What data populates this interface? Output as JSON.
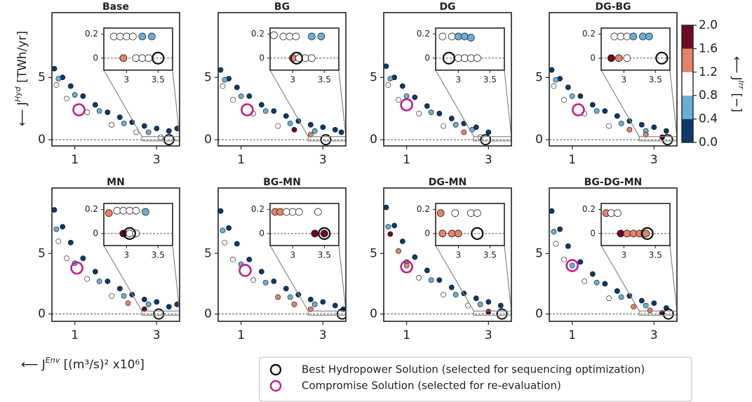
{
  "figure": {
    "ylabel": {
      "prefix": "⟵ J",
      "sup": "Hyd",
      "suffix": " [TWh/yr]"
    },
    "xlabel": {
      "prefix": "⟵ J",
      "sup": "Env",
      "suffix": " [(m³/s)² x10⁶]"
    },
    "zero_line": true,
    "colorbar": {
      "lim": [
        0,
        2
      ],
      "ticks": [
        {
          "value": 0,
          "label": "0.0"
        },
        0.4,
        0.8,
        1.2,
        1.6,
        {
          "value": 2,
          "label": "2.0"
        }
      ],
      "colors": [
        "#0b3a6c",
        "#6aaed6",
        "#ffffff",
        "#e58267",
        "#6e0a22"
      ],
      "label": {
        "prefix": "⟵ J",
        "sup": "Irr",
        "suffix": " [−]"
      }
    },
    "legend": [
      {
        "label": "Best Hydropower Solution (selected for sequencing optimization)",
        "color": "#111111"
      },
      {
        "label": "Compromise Solution (selected for re-evaluation)",
        "color": "#c51b8a"
      }
    ]
  },
  "chart_data": [
    {
      "type": "scatter",
      "title": "Base",
      "xlim": [
        0.44,
        3.56
      ],
      "ylim": [
        -0.5,
        10.2
      ],
      "xticks": [
        1,
        3
      ],
      "yticks": [
        0,
        5
      ],
      "x": [
        0.5,
        0.7,
        0.9,
        1.2,
        1.5,
        1.8,
        2.1,
        2.4,
        2.7,
        3.0,
        3.3,
        3.5,
        0.6,
        1.0,
        1.6,
        2.2,
        2.8,
        0.55,
        0.8,
        1.3,
        1.9,
        2.5,
        3.1
      ],
      "y": [
        5.7,
        5.0,
        4.3,
        3.5,
        2.8,
        2.2,
        1.8,
        1.4,
        1.1,
        0.9,
        0.7,
        0.9,
        4.9,
        3.6,
        2.3,
        1.3,
        0.6,
        4.4,
        3.3,
        2.2,
        1.2,
        0.6,
        0.2
      ],
      "c": [
        0.2,
        0.2,
        0.2,
        0.2,
        0.2,
        0.2,
        0.2,
        0.2,
        0.2,
        0.2,
        0.2,
        0.2,
        0.6,
        0.6,
        0.6,
        0.6,
        0.6,
        1.0,
        1.0,
        1.0,
        1.0,
        1.0,
        1.0
      ],
      "best": {
        "x": 3.3,
        "y": 0
      },
      "compromise": {
        "x": 1.1,
        "y": 2.4
      },
      "inset": {
        "xlim": [
          2.64,
          3.73
        ],
        "ylim": [
          -0.1,
          0.25
        ],
        "xticks": [
          3,
          3.5
        ],
        "yticks": [
          0,
          0.2
        ],
        "x": [
          2.8,
          2.9,
          3.0,
          3.1,
          3.25,
          3.4,
          2.95,
          3.15,
          3.25,
          3.35
        ],
        "y": [
          0.18,
          0.18,
          0.18,
          0.18,
          0.18,
          0.18,
          0,
          0,
          0,
          0
        ],
        "c": [
          1,
          1,
          1,
          1,
          0.6,
          0.6,
          1.4,
          1,
          1,
          1
        ],
        "best": {
          "x": 3.5,
          "y": 0
        }
      }
    },
    {
      "type": "scatter",
      "title": "BG",
      "xlim": [
        0.44,
        3.56
      ],
      "ylim": [
        -0.5,
        10.2
      ],
      "xticks": [
        1,
        3
      ],
      "yticks": [
        0,
        5
      ],
      "x": [
        0.5,
        0.7,
        0.9,
        1.2,
        1.5,
        1.8,
        2.1,
        2.4,
        2.7,
        3.0,
        3.3,
        3.45,
        0.6,
        1.0,
        1.6,
        2.2,
        2.8,
        0.55,
        0.8,
        1.3,
        1.9,
        2.3,
        2.7
      ],
      "y": [
        5.6,
        4.9,
        4.2,
        3.5,
        2.8,
        2.3,
        1.9,
        1.5,
        1.2,
        1.0,
        0.8,
        0.6,
        4.8,
        3.5,
        2.3,
        1.3,
        0.7,
        4.3,
        3.2,
        2.1,
        1.1,
        0.8,
        0.4
      ],
      "c": [
        0.2,
        0.2,
        0.2,
        0.2,
        0.2,
        0.2,
        0.2,
        0.2,
        0.2,
        0.2,
        0.2,
        0.2,
        0.6,
        0.6,
        0.6,
        0.6,
        0.6,
        1.0,
        1.0,
        1.0,
        1.0,
        1.8,
        1.4
      ],
      "best": {
        "x": 3.07,
        "y": 0
      },
      "compromise": {
        "x": 1.15,
        "y": 2.4
      },
      "inset": {
        "xlim": [
          2.64,
          3.73
        ],
        "ylim": [
          -0.1,
          0.25
        ],
        "xticks": [
          3,
          3.5
        ],
        "yticks": [
          0,
          0.2
        ],
        "x": [
          2.7,
          2.85,
          2.95,
          3.05,
          3.3,
          3.45,
          3.0,
          3.1,
          3.2,
          3.3
        ],
        "y": [
          0.19,
          0.18,
          0.18,
          0.18,
          0.18,
          0.18,
          0,
          0,
          0,
          0
        ],
        "c": [
          1,
          1,
          1,
          1,
          0.6,
          0.6,
          1.4,
          1,
          1,
          1
        ],
        "best": {
          "x": 3.06,
          "y": 0
        }
      }
    },
    {
      "type": "scatter",
      "title": "DG",
      "xlim": [
        0.44,
        3.56
      ],
      "ylim": [
        -0.5,
        10.2
      ],
      "xticks": [
        1,
        3
      ],
      "yticks": [
        0,
        5
      ],
      "x": [
        0.5,
        0.7,
        0.9,
        1.2,
        1.5,
        1.8,
        2.1,
        2.4,
        2.7,
        3.0,
        0.6,
        1.0,
        1.6,
        2.2,
        2.6,
        0.55,
        0.8,
        1.3,
        1.9,
        2.4,
        2.8
      ],
      "y": [
        5.9,
        5.0,
        4.3,
        3.4,
        2.7,
        2.1,
        1.7,
        1.3,
        1.0,
        0.6,
        4.9,
        3.5,
        2.2,
        1.2,
        0.8,
        4.4,
        3.2,
        2.1,
        1.1,
        0.6,
        0.2
      ],
      "c": [
        0.2,
        0.2,
        0.2,
        0.2,
        0.2,
        0.2,
        0.2,
        0.2,
        0.2,
        0.2,
        0.6,
        0.6,
        0.6,
        0.6,
        0.6,
        1.0,
        1.0,
        1.0,
        1.0,
        1.4,
        1.0
      ],
      "best": {
        "x": 2.93,
        "y": 0
      },
      "compromise": {
        "x": 1.0,
        "y": 2.8
      },
      "inset": {
        "xlim": [
          2.64,
          3.73
        ],
        "ylim": [
          -0.1,
          0.25
        ],
        "xticks": [
          3,
          3.5
        ],
        "yticks": [
          0,
          0.2
        ],
        "x": [
          2.75,
          2.9,
          3.0,
          3.1,
          3.2,
          3.0,
          3.1,
          3.2,
          3.3
        ],
        "y": [
          0.18,
          0.18,
          0.18,
          0.18,
          0.17,
          0,
          0,
          0,
          0
        ],
        "c": [
          1,
          1,
          0.6,
          0.6,
          0.6,
          1,
          1,
          1,
          1
        ],
        "best": {
          "x": 2.85,
          "y": 0
        }
      }
    },
    {
      "type": "scatter",
      "title": "DG-BG",
      "xlim": [
        0.44,
        3.56
      ],
      "ylim": [
        -0.5,
        10.2
      ],
      "xticks": [
        1,
        3
      ],
      "yticks": [
        0,
        5
      ],
      "x": [
        0.5,
        0.7,
        0.9,
        1.2,
        1.5,
        1.8,
        2.1,
        2.4,
        2.7,
        3.0,
        3.3,
        0.6,
        1.0,
        1.6,
        2.2,
        2.8,
        0.55,
        0.8,
        1.3,
        1.9,
        2.4,
        2.8,
        3.2
      ],
      "y": [
        5.6,
        4.9,
        4.2,
        3.5,
        2.8,
        2.3,
        1.9,
        1.5,
        1.2,
        1.0,
        0.7,
        4.8,
        3.5,
        2.3,
        1.3,
        0.7,
        4.3,
        3.2,
        2.1,
        1.1,
        0.8,
        0.4,
        0.2
      ],
      "c": [
        0.2,
        0.2,
        0.2,
        0.2,
        0.2,
        0.2,
        0.2,
        0.2,
        0.2,
        0.2,
        0.2,
        0.6,
        0.6,
        0.6,
        0.6,
        0.6,
        1.0,
        1.0,
        1.0,
        1.0,
        1.4,
        1.4,
        1.8
      ],
      "best": {
        "x": 3.33,
        "y": 0
      },
      "compromise": {
        "x": 1.15,
        "y": 2.4
      },
      "inset": {
        "xlim": [
          2.64,
          3.73
        ],
        "ylim": [
          -0.1,
          0.25
        ],
        "xticks": [
          3,
          3.5
        ],
        "yticks": [
          0,
          0.2
        ],
        "x": [
          2.85,
          2.95,
          3.05,
          3.15,
          3.3,
          3.4,
          2.8,
          2.92,
          3.05
        ],
        "y": [
          0.18,
          0.18,
          0.18,
          0.18,
          0.18,
          0.18,
          0,
          0,
          0
        ],
        "c": [
          1,
          1,
          1,
          0.6,
          0.6,
          0.6,
          1.8,
          1.4,
          1
        ],
        "best": {
          "x": 3.6,
          "y": 0
        }
      }
    },
    {
      "type": "scatter",
      "title": "MN",
      "xlim": [
        0.44,
        3.56
      ],
      "ylim": [
        -0.6,
        10.4
      ],
      "xticks": [
        1,
        3
      ],
      "yticks": [
        0,
        5
      ],
      "x": [
        0.5,
        0.7,
        0.9,
        1.2,
        1.5,
        1.8,
        2.1,
        2.4,
        2.7,
        3.0,
        3.3,
        3.5,
        0.55,
        1.0,
        1.6,
        2.2,
        2.8,
        0.6,
        0.8,
        1.3,
        1.9,
        2.3,
        2.7
      ],
      "y": [
        8.6,
        7.2,
        5.9,
        4.6,
        3.5,
        2.7,
        2.1,
        1.6,
        1.2,
        1.0,
        0.6,
        0.8,
        7.0,
        4.2,
        2.7,
        1.5,
        0.8,
        6.0,
        4.6,
        2.9,
        1.5,
        0.9,
        0.4
      ],
      "c": [
        0.2,
        0.2,
        0.2,
        0.2,
        0.2,
        0.2,
        0.2,
        0.2,
        0.2,
        0.2,
        0.2,
        0.2,
        0.6,
        0.6,
        0.6,
        0.6,
        0.6,
        1.0,
        1.0,
        1.0,
        1.0,
        1.4,
        1.8
      ],
      "best": {
        "x": 3.05,
        "y": 0
      },
      "compromise": {
        "x": 1.05,
        "y": 3.8
      },
      "inset": {
        "xlim": [
          2.64,
          3.73
        ],
        "ylim": [
          -0.1,
          0.25
        ],
        "xticks": [
          3,
          3.5
        ],
        "yticks": [
          0,
          0.2
        ],
        "x": [
          2.72,
          2.85,
          2.95,
          3.05,
          3.15,
          3.3,
          2.95,
          3.05,
          3.15
        ],
        "y": [
          0.17,
          0.19,
          0.19,
          0.19,
          0.19,
          0.18,
          0,
          0,
          0
        ],
        "c": [
          1.4,
          1,
          1,
          1,
          1,
          0.6,
          1.8,
          1,
          1
        ],
        "best": {
          "x": 3.05,
          "y": 0
        }
      }
    },
    {
      "type": "scatter",
      "title": "BG-MN",
      "xlim": [
        0.44,
        3.56
      ],
      "ylim": [
        -0.6,
        10.4
      ],
      "xticks": [
        1,
        3
      ],
      "yticks": [
        0,
        5
      ],
      "x": [
        0.5,
        0.7,
        0.9,
        1.2,
        1.5,
        1.8,
        2.1,
        2.4,
        2.7,
        3.0,
        3.3,
        3.5,
        0.55,
        1.0,
        1.6,
        2.2,
        2.8,
        0.6,
        0.8,
        1.3,
        1.9,
        2.3,
        2.7
      ],
      "y": [
        8.5,
        7.1,
        5.8,
        4.5,
        3.5,
        2.7,
        2.1,
        1.6,
        1.2,
        1.0,
        0.7,
        0.4,
        6.9,
        4.1,
        2.6,
        1.4,
        0.8,
        5.9,
        4.5,
        2.8,
        1.4,
        0.8,
        0.4
      ],
      "c": [
        0.2,
        0.2,
        0.2,
        0.2,
        0.2,
        0.2,
        0.2,
        0.2,
        0.2,
        0.2,
        0.2,
        0.2,
        0.6,
        0.6,
        0.6,
        0.6,
        0.6,
        1.0,
        1.0,
        1.0,
        1.4,
        1.4,
        1.4
      ],
      "best": {
        "x": 3.47,
        "y": 0
      },
      "compromise": {
        "x": 1.1,
        "y": 3.6
      },
      "inset": {
        "xlim": [
          2.64,
          3.73
        ],
        "ylim": [
          -0.1,
          0.25
        ],
        "xticks": [
          3,
          3.5
        ],
        "yticks": [
          0,
          0.2
        ],
        "x": [
          2.72,
          2.8,
          2.9,
          3.0,
          3.1,
          3.4,
          3.35,
          3.5
        ],
        "y": [
          0.18,
          0.18,
          0.18,
          0.18,
          0.18,
          0.18,
          0,
          0
        ],
        "c": [
          1.4,
          1.4,
          1,
          1,
          1,
          1,
          1.8,
          1.8
        ],
        "best": {
          "x": 3.5,
          "y": 0
        }
      }
    },
    {
      "type": "scatter",
      "title": "DG-MN",
      "xlim": [
        0.44,
        3.56
      ],
      "ylim": [
        -0.6,
        10.4
      ],
      "xticks": [
        1,
        3
      ],
      "yticks": [
        0,
        5
      ],
      "x": [
        0.5,
        0.7,
        0.9,
        1.2,
        1.5,
        1.8,
        2.1,
        2.4,
        2.7,
        3.0,
        3.3,
        0.55,
        1.0,
        1.6,
        2.2,
        2.8,
        0.6,
        0.8,
        1.0,
        1.3,
        1.9,
        2.5,
        3.0
      ],
      "y": [
        8.8,
        7.3,
        6.0,
        4.7,
        3.6,
        2.8,
        2.2,
        1.7,
        1.3,
        1.0,
        0.7,
        7.2,
        4.3,
        2.8,
        1.6,
        0.8,
        6.6,
        5.2,
        4.0,
        3.0,
        1.6,
        0.7,
        0.2
      ],
      "c": [
        0.2,
        0.2,
        0.2,
        0.2,
        0.2,
        0.2,
        0.2,
        0.2,
        0.2,
        0.2,
        0.2,
        0.6,
        0.6,
        0.6,
        0.6,
        0.6,
        1.8,
        1.4,
        1.4,
        1.0,
        1.0,
        1.0,
        1.8
      ],
      "best": {
        "x": 3.33,
        "y": 0
      },
      "compromise": {
        "x": 1.0,
        "y": 3.9
      },
      "inset": {
        "xlim": [
          2.64,
          3.73
        ],
        "ylim": [
          -0.1,
          0.25
        ],
        "xticks": [
          3,
          3.5
        ],
        "yticks": [
          0,
          0.2
        ],
        "x": [
          2.72,
          2.95,
          3.2,
          3.3,
          2.75,
          2.9,
          3.0
        ],
        "y": [
          0.17,
          0.17,
          0.17,
          0.17,
          0,
          0,
          0
        ],
        "c": [
          1.4,
          1,
          1,
          1,
          1.4,
          1.4,
          1.4
        ],
        "best": {
          "x": 3.3,
          "y": 0
        }
      }
    },
    {
      "type": "scatter",
      "title": "BG-DG-MN",
      "xlim": [
        0.44,
        3.56
      ],
      "ylim": [
        -0.6,
        10.4
      ],
      "xticks": [
        1,
        3
      ],
      "yticks": [
        0,
        5
      ],
      "x": [
        0.5,
        0.7,
        0.9,
        1.2,
        1.5,
        1.8,
        2.1,
        2.4,
        2.7,
        3.0,
        3.3,
        0.55,
        1.0,
        1.6,
        2.2,
        2.8,
        0.6,
        0.8,
        1.3,
        1.9,
        2.5,
        2.9,
        3.2
      ],
      "y": [
        8.5,
        7.0,
        5.6,
        4.3,
        3.3,
        2.5,
        1.9,
        1.5,
        1.1,
        0.9,
        0.5,
        6.8,
        4.0,
        2.6,
        1.4,
        0.7,
        5.8,
        4.5,
        2.7,
        1.3,
        0.6,
        0.3,
        0.1
      ],
      "c": [
        0.2,
        0.2,
        0.2,
        0.2,
        0.2,
        0.2,
        0.2,
        0.2,
        0.2,
        0.2,
        0.2,
        0.6,
        0.6,
        0.6,
        0.6,
        0.6,
        1.0,
        1.0,
        1.0,
        1.0,
        1.4,
        1.4,
        1.8
      ],
      "best": {
        "x": 3.35,
        "y": 0
      },
      "compromise": {
        "x": 1.0,
        "y": 4.0
      },
      "inset": {
        "xlim": [
          2.64,
          3.73
        ],
        "ylim": [
          -0.1,
          0.25
        ],
        "xticks": [
          3,
          3.5
        ],
        "yticks": [
          0,
          0.2
        ],
        "x": [
          2.72,
          2.8,
          2.9,
          2.95,
          3.05,
          3.15,
          3.25,
          3.35
        ],
        "y": [
          0.17,
          0.17,
          0.17,
          0,
          0,
          0,
          0,
          0
        ],
        "c": [
          1.4,
          1,
          1,
          1.8,
          1.4,
          1.4,
          1.4,
          1.4
        ],
        "best": {
          "x": 3.37,
          "y": 0
        }
      }
    }
  ]
}
